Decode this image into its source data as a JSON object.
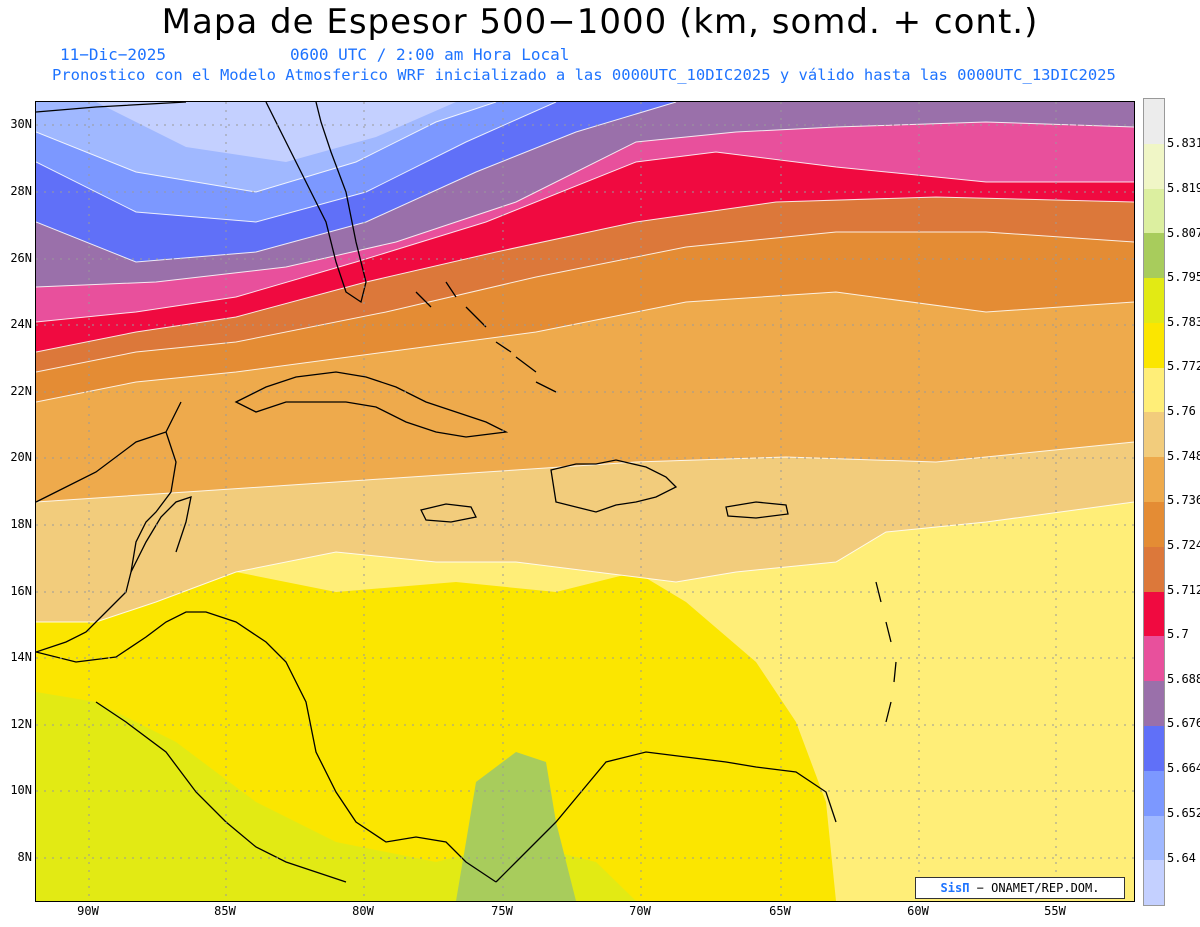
{
  "title": "Mapa de Espesor 500−1000 (km, somd. + cont.)",
  "date": "11−Dic−2025",
  "time": "0600 UTC / 2:00 am Hora Local",
  "description": "Pronostico con el Modelo Atmosferico WRF inicializado a las 0000UTC_10DIC2025 y válido hasta las  0000UTC_13DIC2025",
  "credit": {
    "brand": "SisΠ",
    "text": "− ONAMET/REP.DOM."
  },
  "axes": {
    "lat_labels": [
      "30N",
      "28N",
      "26N",
      "24N",
      "22N",
      "20N",
      "18N",
      "16N",
      "14N",
      "12N",
      "10N",
      "8N"
    ],
    "lon_labels": [
      "90W",
      "85W",
      "80W",
      "75W",
      "70W",
      "65W",
      "60W",
      "55W"
    ]
  },
  "colorbar": {
    "labels": [
      "5.831",
      "5.819",
      "5.807",
      "5.795",
      "5.783",
      "5.772",
      "5.76",
      "5.748",
      "5.736",
      "5.724",
      "5.712",
      "5.7",
      "5.688",
      "5.676",
      "5.664",
      "5.652",
      "5.64"
    ],
    "colors": [
      "#ececec",
      "#f0f6c6",
      "#dcefa0",
      "#a8cc5c",
      "#e2ea14",
      "#fbe600",
      "#ffee78",
      "#f2cc7c",
      "#eeaa4c",
      "#e48c34",
      "#dc783a",
      "#f00a40",
      "#e8509c",
      "#9a70aa",
      "#6070f8",
      "#7c98ff",
      "#a0b8ff",
      "#c4d0ff"
    ]
  },
  "colors": {
    "accent_blue": "#1e73ff",
    "coast": "#000000"
  }
}
